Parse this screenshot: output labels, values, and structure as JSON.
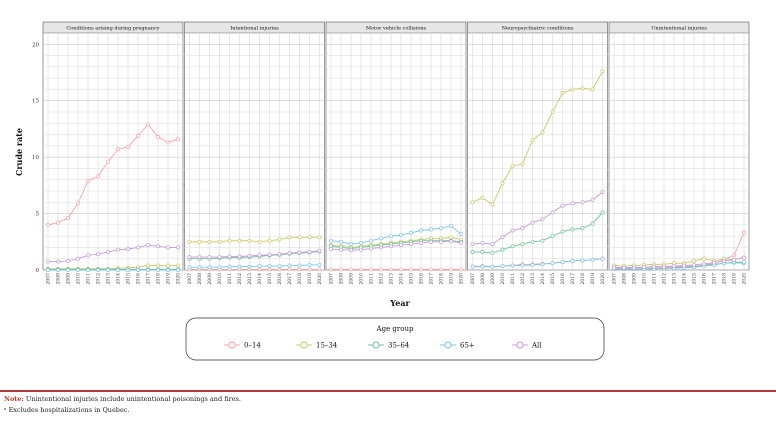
{
  "chart_data": {
    "type": "line",
    "ylabel": "Crude rate",
    "xlabel": "Year",
    "ylim": [
      0,
      21
    ],
    "y_ticks": [
      0,
      5,
      10,
      15,
      20
    ],
    "x": [
      2007,
      2008,
      2009,
      2010,
      2011,
      2012,
      2013,
      2014,
      2015,
      2016,
      2017,
      2018,
      2019,
      2020
    ],
    "legend": {
      "title": "Age group",
      "placement": "bottom",
      "entries": [
        {
          "label": "0–14",
          "color": "#f4a3a3"
        },
        {
          "label": "15–34",
          "color": "#c8c866"
        },
        {
          "label": "35–64",
          "color": "#6cc49a"
        },
        {
          "label": "65+",
          "color": "#7cc4ea"
        },
        {
          "label": "All",
          "color": "#c79ad8"
        }
      ]
    },
    "grid": true,
    "panels": [
      {
        "title": "Conditions arising during pregnancy",
        "series": [
          {
            "group": "0–14",
            "values": [
              0.05,
              0.05,
              0.05,
              0.05,
              0.05,
              0.05,
              0.05,
              0.05,
              0.05,
              0.05,
              0.05,
              0.05,
              0.05,
              0.05
            ]
          },
          {
            "group": "15–34",
            "values": [
              0.1,
              0.1,
              0.1,
              0.1,
              0.1,
              0.1,
              0.1,
              0.15,
              0.2,
              0.25,
              0.4,
              0.4,
              0.4,
              0.4
            ]
          },
          {
            "group": "35–64",
            "values": [
              0.05,
              0.05,
              0.05,
              0.05,
              0.05,
              0.05,
              0.05,
              0.05,
              0.05,
              0.05,
              0.05,
              0.05,
              0.05,
              0.05
            ]
          },
          {
            "group": "65+",
            "values": [
              0.0,
              0.0,
              0.0,
              0.0,
              0.0,
              0.0,
              0.0,
              0.0,
              0.0,
              0.0,
              0.0,
              0.0,
              0.0,
              0.0
            ]
          },
          {
            "group": "All",
            "values": [
              0.75,
              0.75,
              0.8,
              1.0,
              1.3,
              1.4,
              1.6,
              1.8,
              1.85,
              2.0,
              2.2,
              2.1,
              2.0,
              2.0
            ]
          },
          {
            "group": "0–14",
            "label_override": "",
            "values": [
              4.0,
              4.2,
              4.6,
              5.9,
              7.9,
              8.3,
              9.6,
              10.7,
              10.9,
              11.9,
              12.9,
              11.8,
              11.3,
              11.6
            ],
            "color": "#f4a3a3"
          }
        ]
      },
      {
        "title": "Intentional injuries",
        "series": [
          {
            "group": "0–14",
            "values": [
              0.05,
              0.05,
              0.05,
              0.05,
              0.05,
              0.05,
              0.05,
              0.05,
              0.05,
              0.05,
              0.05,
              0.05,
              0.05,
              0.05
            ]
          },
          {
            "group": "15–34",
            "values": [
              2.5,
              2.5,
              2.5,
              2.5,
              2.6,
              2.6,
              2.6,
              2.5,
              2.6,
              2.7,
              2.9,
              2.9,
              2.9,
              2.9
            ]
          },
          {
            "group": "35–64",
            "values": [
              1.0,
              1.0,
              1.0,
              1.05,
              1.1,
              1.1,
              1.15,
              1.2,
              1.3,
              1.35,
              1.45,
              1.5,
              1.55,
              1.65
            ]
          },
          {
            "group": "65+",
            "values": [
              0.25,
              0.25,
              0.25,
              0.25,
              0.3,
              0.3,
              0.3,
              0.35,
              0.35,
              0.35,
              0.4,
              0.4,
              0.45,
              0.45
            ]
          },
          {
            "group": "All",
            "values": [
              1.15,
              1.15,
              1.15,
              1.15,
              1.2,
              1.2,
              1.25,
              1.3,
              1.35,
              1.4,
              1.5,
              1.55,
              1.6,
              1.7
            ]
          }
        ]
      },
      {
        "title": "Motor vehicle collisions",
        "series": [
          {
            "group": "0–14",
            "values": [
              0.05,
              0.05,
              0.05,
              0.05,
              0.05,
              0.05,
              0.05,
              0.05,
              0.05,
              0.05,
              0.05,
              0.05,
              0.05,
              0.05
            ]
          },
          {
            "group": "15–34",
            "values": [
              2.2,
              2.1,
              2.0,
              2.1,
              2.2,
              2.3,
              2.4,
              2.5,
              2.6,
              2.7,
              2.8,
              2.8,
              2.9,
              2.7
            ]
          },
          {
            "group": "35–64",
            "values": [
              2.1,
              2.0,
              1.9,
              2.0,
              2.1,
              2.2,
              2.3,
              2.4,
              2.5,
              2.6,
              2.6,
              2.6,
              2.6,
              2.5
            ]
          },
          {
            "group": "65+",
            "values": [
              2.6,
              2.5,
              2.3,
              2.4,
              2.6,
              2.8,
              3.0,
              3.1,
              3.3,
              3.5,
              3.6,
              3.7,
              3.9,
              3.2
            ]
          },
          {
            "group": "All",
            "values": [
              1.85,
              1.8,
              1.75,
              1.8,
              1.9,
              2.0,
              2.1,
              2.2,
              2.3,
              2.4,
              2.5,
              2.5,
              2.55,
              2.4
            ]
          }
        ]
      },
      {
        "title": "Neuropsychiatric conditions",
        "series": [
          {
            "group": "0–14",
            "values": [
              0.3,
              0.35,
              0.3,
              0.35,
              0.4,
              0.5,
              0.5,
              0.55,
              0.6,
              0.7,
              0.8,
              0.85,
              0.9,
              1.0
            ]
          },
          {
            "group": "15–34",
            "values": [
              6.0,
              6.4,
              5.8,
              7.7,
              9.2,
              9.4,
              11.5,
              12.2,
              14.0,
              15.7,
              16.0,
              16.1,
              16.0,
              17.6
            ]
          },
          {
            "group": "35–64",
            "values": [
              1.6,
              1.6,
              1.5,
              1.8,
              2.1,
              2.3,
              2.5,
              2.6,
              3.0,
              3.4,
              3.6,
              3.7,
              4.1,
              5.1
            ]
          },
          {
            "group": "65+",
            "values": [
              0.3,
              0.3,
              0.3,
              0.35,
              0.4,
              0.4,
              0.45,
              0.5,
              0.6,
              0.7,
              0.8,
              0.85,
              0.9,
              1.0
            ]
          },
          {
            "group": "All",
            "values": [
              2.3,
              2.4,
              2.3,
              2.9,
              3.5,
              3.7,
              4.2,
              4.5,
              5.1,
              5.7,
              5.9,
              6.0,
              6.2,
              6.9
            ]
          }
        ]
      },
      {
        "title": "Unintentional injuries",
        "series": [
          {
            "group": "0–14",
            "values": [
              0.2,
              0.2,
              0.2,
              0.25,
              0.25,
              0.25,
              0.3,
              0.3,
              0.35,
              0.4,
              0.6,
              0.9,
              1.3,
              3.3
            ]
          },
          {
            "group": "15–34",
            "values": [
              0.4,
              0.35,
              0.4,
              0.45,
              0.5,
              0.5,
              0.6,
              0.6,
              0.8,
              1.0,
              0.8,
              1.0,
              0.9,
              1.1
            ]
          },
          {
            "group": "35–64",
            "values": [
              0.1,
              0.1,
              0.1,
              0.1,
              0.15,
              0.15,
              0.2,
              0.25,
              0.3,
              0.4,
              0.5,
              0.6,
              0.65,
              0.6
            ]
          },
          {
            "group": "65+",
            "values": [
              0.1,
              0.1,
              0.1,
              0.1,
              0.1,
              0.15,
              0.15,
              0.2,
              0.25,
              0.35,
              0.45,
              0.6,
              0.7,
              0.7
            ]
          },
          {
            "group": "All",
            "values": [
              0.2,
              0.2,
              0.2,
              0.25,
              0.3,
              0.3,
              0.35,
              0.4,
              0.45,
              0.55,
              0.65,
              0.8,
              0.9,
              1.1
            ]
          }
        ]
      }
    ]
  },
  "notes": {
    "note_label": "Note:",
    "note_text": " Unintentional injuries include unintentional poisonings and fires.",
    "footnote": "ᵃ Excludes hospitalizations in Quebec."
  }
}
